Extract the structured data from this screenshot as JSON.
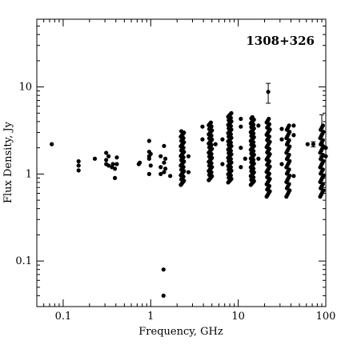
{
  "chart_data": {
    "type": "scatter",
    "title": "1308+326",
    "xlabel": "Frequency, GHz",
    "ylabel": "Flux Density, Jy",
    "xscale": "log",
    "yscale": "log",
    "xlim": [
      0.05,
      100
    ],
    "ylim": [
      0.03,
      60
    ],
    "grid": false,
    "x_tick_labels": [
      {
        "value": 0.1,
        "label": "0.1"
      },
      {
        "value": 1,
        "label": "1"
      },
      {
        "value": 10,
        "label": "10"
      },
      {
        "value": 100,
        "label": "100"
      }
    ],
    "y_tick_labels": [
      {
        "value": 0.1,
        "label": "0.1"
      },
      {
        "value": 1,
        "label": "1"
      },
      {
        "value": 10,
        "label": "10"
      }
    ],
    "columns": [
      {
        "x": 2.3,
        "ymin": 0.75,
        "ymax": 3.1,
        "n": 40
      },
      {
        "x": 4.8,
        "ymin": 0.85,
        "ymax": 3.9,
        "n": 45
      },
      {
        "x": 8.0,
        "ymin": 0.8,
        "ymax": 5.0,
        "n": 60
      },
      {
        "x": 14.5,
        "ymin": 0.75,
        "ymax": 4.5,
        "n": 55
      },
      {
        "x": 22.0,
        "ymin": 0.55,
        "ymax": 4.3,
        "n": 45
      },
      {
        "x": 37.0,
        "ymin": 0.55,
        "ymax": 3.6,
        "n": 35
      },
      {
        "x": 90.0,
        "ymin": 0.55,
        "ymax": 3.6,
        "n": 35
      }
    ],
    "points": [
      {
        "x": 0.074,
        "y": 2.2
      },
      {
        "x": 0.15,
        "y": 1.1
      },
      {
        "x": 0.15,
        "y": 1.25
      },
      {
        "x": 0.15,
        "y": 1.4
      },
      {
        "x": 0.23,
        "y": 1.5
      },
      {
        "x": 0.31,
        "y": 1.3
      },
      {
        "x": 0.31,
        "y": 1.45
      },
      {
        "x": 0.31,
        "y": 1.75
      },
      {
        "x": 0.33,
        "y": 1.25
      },
      {
        "x": 0.33,
        "y": 1.6
      },
      {
        "x": 0.36,
        "y": 1.2
      },
      {
        "x": 0.37,
        "y": 1.3
      },
      {
        "x": 0.39,
        "y": 1.15
      },
      {
        "x": 0.39,
        "y": 0.9
      },
      {
        "x": 0.41,
        "y": 1.3
      },
      {
        "x": 0.41,
        "y": 1.55
      },
      {
        "x": 0.73,
        "y": 1.3
      },
      {
        "x": 0.75,
        "y": 1.35
      },
      {
        "x": 0.96,
        "y": 1.0
      },
      {
        "x": 0.96,
        "y": 1.5
      },
      {
        "x": 0.96,
        "y": 1.6
      },
      {
        "x": 0.96,
        "y": 1.8
      },
      {
        "x": 0.96,
        "y": 2.4
      },
      {
        "x": 1.0,
        "y": 1.25
      },
      {
        "x": 1.0,
        "y": 1.7
      },
      {
        "x": 1.3,
        "y": 1.0
      },
      {
        "x": 1.3,
        "y": 1.2
      },
      {
        "x": 1.3,
        "y": 1.6
      },
      {
        "x": 1.4,
        "y": 0.08
      },
      {
        "x": 1.4,
        "y": 0.04
      },
      {
        "x": 1.42,
        "y": 1.05
      },
      {
        "x": 1.42,
        "y": 1.35
      },
      {
        "x": 1.42,
        "y": 2.1
      },
      {
        "x": 1.47,
        "y": 1.15
      },
      {
        "x": 1.47,
        "y": 1.5
      },
      {
        "x": 1.67,
        "y": 0.95
      },
      {
        "x": 2.7,
        "y": 1.6
      },
      {
        "x": 2.7,
        "y": 1.05
      },
      {
        "x": 3.9,
        "y": 2.5
      },
      {
        "x": 3.9,
        "y": 3.5
      },
      {
        "x": 5.5,
        "y": 2.2
      },
      {
        "x": 6.6,
        "y": 2.5
      },
      {
        "x": 6.6,
        "y": 1.3
      },
      {
        "x": 10.7,
        "y": 1.2
      },
      {
        "x": 10.7,
        "y": 2.0
      },
      {
        "x": 10.7,
        "y": 3.5
      },
      {
        "x": 10.7,
        "y": 4.3
      },
      {
        "x": 12,
        "y": 1.5
      },
      {
        "x": 17,
        "y": 1.5
      },
      {
        "x": 17,
        "y": 3.6
      },
      {
        "x": 31.4,
        "y": 2.5
      },
      {
        "x": 31.4,
        "y": 3.3
      },
      {
        "x": 31.4,
        "y": 1.3
      },
      {
        "x": 43,
        "y": 0.95
      },
      {
        "x": 43,
        "y": 2.8
      },
      {
        "x": 43,
        "y": 3.6
      },
      {
        "x": 62,
        "y": 2.2
      },
      {
        "x": 100,
        "y": 1.6
      },
      {
        "x": 100,
        "y": 2.0
      }
    ],
    "error_points": [
      {
        "x": 22.0,
        "y": 8.8,
        "ylow": 6.5,
        "yhigh": 11.0
      },
      {
        "x": 72.0,
        "y": 2.2,
        "ylow": 2.05,
        "yhigh": 2.35
      },
      {
        "x": 90.0,
        "y": 2.2,
        "ylow": 1.6,
        "yhigh": 4.8
      }
    ]
  }
}
